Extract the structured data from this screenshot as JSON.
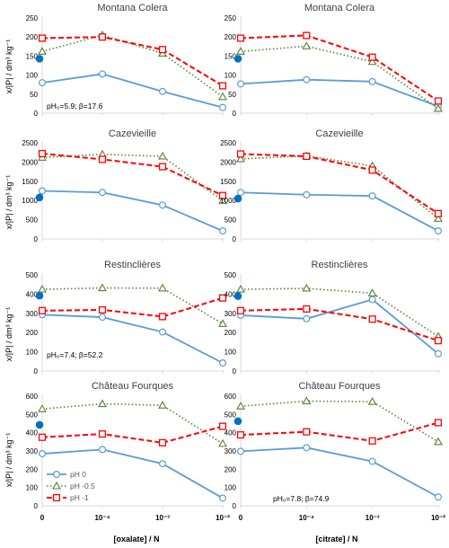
{
  "figure": {
    "ylabel": "x/|P| / dm³ kg⁻¹",
    "xlabel_left": "[oxalate] / N",
    "xlabel_right": "[citrate] / N",
    "x_tick_labels": [
      "0",
      "10⁻⁴",
      "10⁻³",
      "10⁻²"
    ]
  },
  "chart_data": [
    {
      "type": "line",
      "title": "Montana Colera",
      "xlabel": "",
      "ylabel": "x/|P| / dm³ kg⁻¹",
      "categories": [
        "0",
        "10⁻⁴",
        "10⁻³",
        "10⁻²"
      ],
      "ylim": [
        0,
        250
      ],
      "yticks": [
        0,
        50,
        100,
        150,
        200,
        250
      ],
      "annotation": "pH₀=5.9; β=17.6",
      "control_point": 143,
      "series": [
        {
          "name": "pH 0",
          "values": [
            80,
            103,
            57,
            15
          ]
        },
        {
          "name": "pH -0.5",
          "values": [
            162,
            205,
            157,
            43
          ]
        },
        {
          "name": "pH -1",
          "values": [
            197,
            200,
            167,
            72
          ]
        }
      ]
    },
    {
      "type": "line",
      "title": "Montana Colera",
      "xlabel": "",
      "ylabel": "",
      "categories": [
        "0",
        "10⁻⁴",
        "10⁻³",
        "10⁻²"
      ],
      "ylim": [
        0,
        250
      ],
      "yticks": [
        0,
        50,
        100,
        150,
        200,
        250
      ],
      "control_point": 143,
      "series": [
        {
          "name": "pH 0",
          "values": [
            77,
            88,
            83,
            18
          ]
        },
        {
          "name": "pH -0.5",
          "values": [
            162,
            176,
            135,
            12
          ]
        },
        {
          "name": "pH -1",
          "values": [
            197,
            204,
            147,
            32
          ]
        }
      ]
    },
    {
      "type": "line",
      "title": "Cazevieille",
      "xlabel": "",
      "ylabel": "x/|P| / dm³ kg⁻¹",
      "categories": [
        "0",
        "10⁻⁴",
        "10⁻³",
        "10⁻²"
      ],
      "ylim": [
        0,
        2500
      ],
      "yticks": [
        0,
        500,
        1000,
        1500,
        2000,
        2500
      ],
      "control_point": 1080,
      "series": [
        {
          "name": "pH 0",
          "values": [
            1250,
            1210,
            880,
            210
          ]
        },
        {
          "name": "pH -0.5",
          "values": [
            2120,
            2200,
            2150,
            990
          ]
        },
        {
          "name": "pH -1",
          "values": [
            2220,
            2070,
            1880,
            1130
          ]
        }
      ]
    },
    {
      "type": "line",
      "title": "Cazevieille",
      "xlabel": "",
      "ylabel": "",
      "categories": [
        "0",
        "10⁻⁴",
        "10⁻³",
        "10⁻²"
      ],
      "ylim": [
        0,
        2500
      ],
      "yticks": [
        0,
        500,
        1000,
        1500,
        2000,
        2500
      ],
      "control_point": 1050,
      "series": [
        {
          "name": "pH 0",
          "values": [
            1210,
            1150,
            1120,
            210
          ]
        },
        {
          "name": "pH -0.5",
          "values": [
            2080,
            2160,
            1900,
            530
          ]
        },
        {
          "name": "pH -1",
          "values": [
            2210,
            2150,
            1790,
            660
          ]
        }
      ]
    },
    {
      "type": "line",
      "title": "Restinclières",
      "xlabel": "",
      "ylabel": "x/|P| / dm³ kg⁻¹",
      "categories": [
        "0",
        "10⁻⁴",
        "10⁻³",
        "10⁻²"
      ],
      "ylim": [
        0,
        500
      ],
      "yticks": [
        0,
        100,
        200,
        300,
        400,
        500
      ],
      "annotation": "pH₀=7.4; β=52.2",
      "control_point": 392,
      "series": [
        {
          "name": "pH 0",
          "values": [
            293,
            280,
            203,
            42
          ]
        },
        {
          "name": "pH -0.5",
          "values": [
            425,
            432,
            431,
            246
          ]
        },
        {
          "name": "pH -1",
          "values": [
            314,
            318,
            283,
            380
          ]
        }
      ]
    },
    {
      "type": "line",
      "title": "Restinclières",
      "xlabel": "",
      "ylabel": "",
      "categories": [
        "0",
        "10⁻⁴",
        "10⁻³",
        "10⁻²"
      ],
      "ylim": [
        0,
        500
      ],
      "yticks": [
        0,
        100,
        200,
        300,
        400,
        500
      ],
      "control_point": 390,
      "series": [
        {
          "name": "pH 0",
          "values": [
            290,
            272,
            372,
            90
          ]
        },
        {
          "name": "pH -0.5",
          "values": [
            425,
            430,
            405,
            180
          ]
        },
        {
          "name": "pH -1",
          "values": [
            314,
            323,
            270,
            158
          ]
        }
      ]
    },
    {
      "type": "line",
      "title": "Château Fourques",
      "xlabel": "[oxalate] / N",
      "ylabel": "x/|P| / dm³ kg⁻¹",
      "categories": [
        "0",
        "10⁻⁴",
        "10⁻³",
        "10⁻²"
      ],
      "ylim": [
        0,
        600
      ],
      "yticks": [
        0,
        100,
        200,
        300,
        400,
        500,
        600
      ],
      "annotation": "pH₀=7.8; β=74.9",
      "control_point": 443,
      "legend": "bottom-left",
      "series": [
        {
          "name": "pH 0",
          "values": [
            285,
            308,
            230,
            42
          ]
        },
        {
          "name": "pH -0.5",
          "values": [
            530,
            558,
            550,
            340
          ]
        },
        {
          "name": "pH -1",
          "values": [
            375,
            393,
            345,
            435
          ]
        }
      ]
    },
    {
      "type": "line",
      "title": "Château Fourques",
      "xlabel": "[citrate] / N",
      "ylabel": "",
      "categories": [
        "0",
        "10⁻⁴",
        "10⁻³",
        "10⁻²"
      ],
      "ylim": [
        0,
        600
      ],
      "yticks": [
        0,
        100,
        200,
        300,
        400,
        500,
        600
      ],
      "control_point": 463,
      "series": [
        {
          "name": "pH 0",
          "values": [
            298,
            318,
            243,
            48
          ]
        },
        {
          "name": "pH -0.5",
          "values": [
            545,
            573,
            570,
            350
          ]
        },
        {
          "name": "pH -1",
          "values": [
            388,
            405,
            355,
            455
          ]
        }
      ]
    }
  ]
}
